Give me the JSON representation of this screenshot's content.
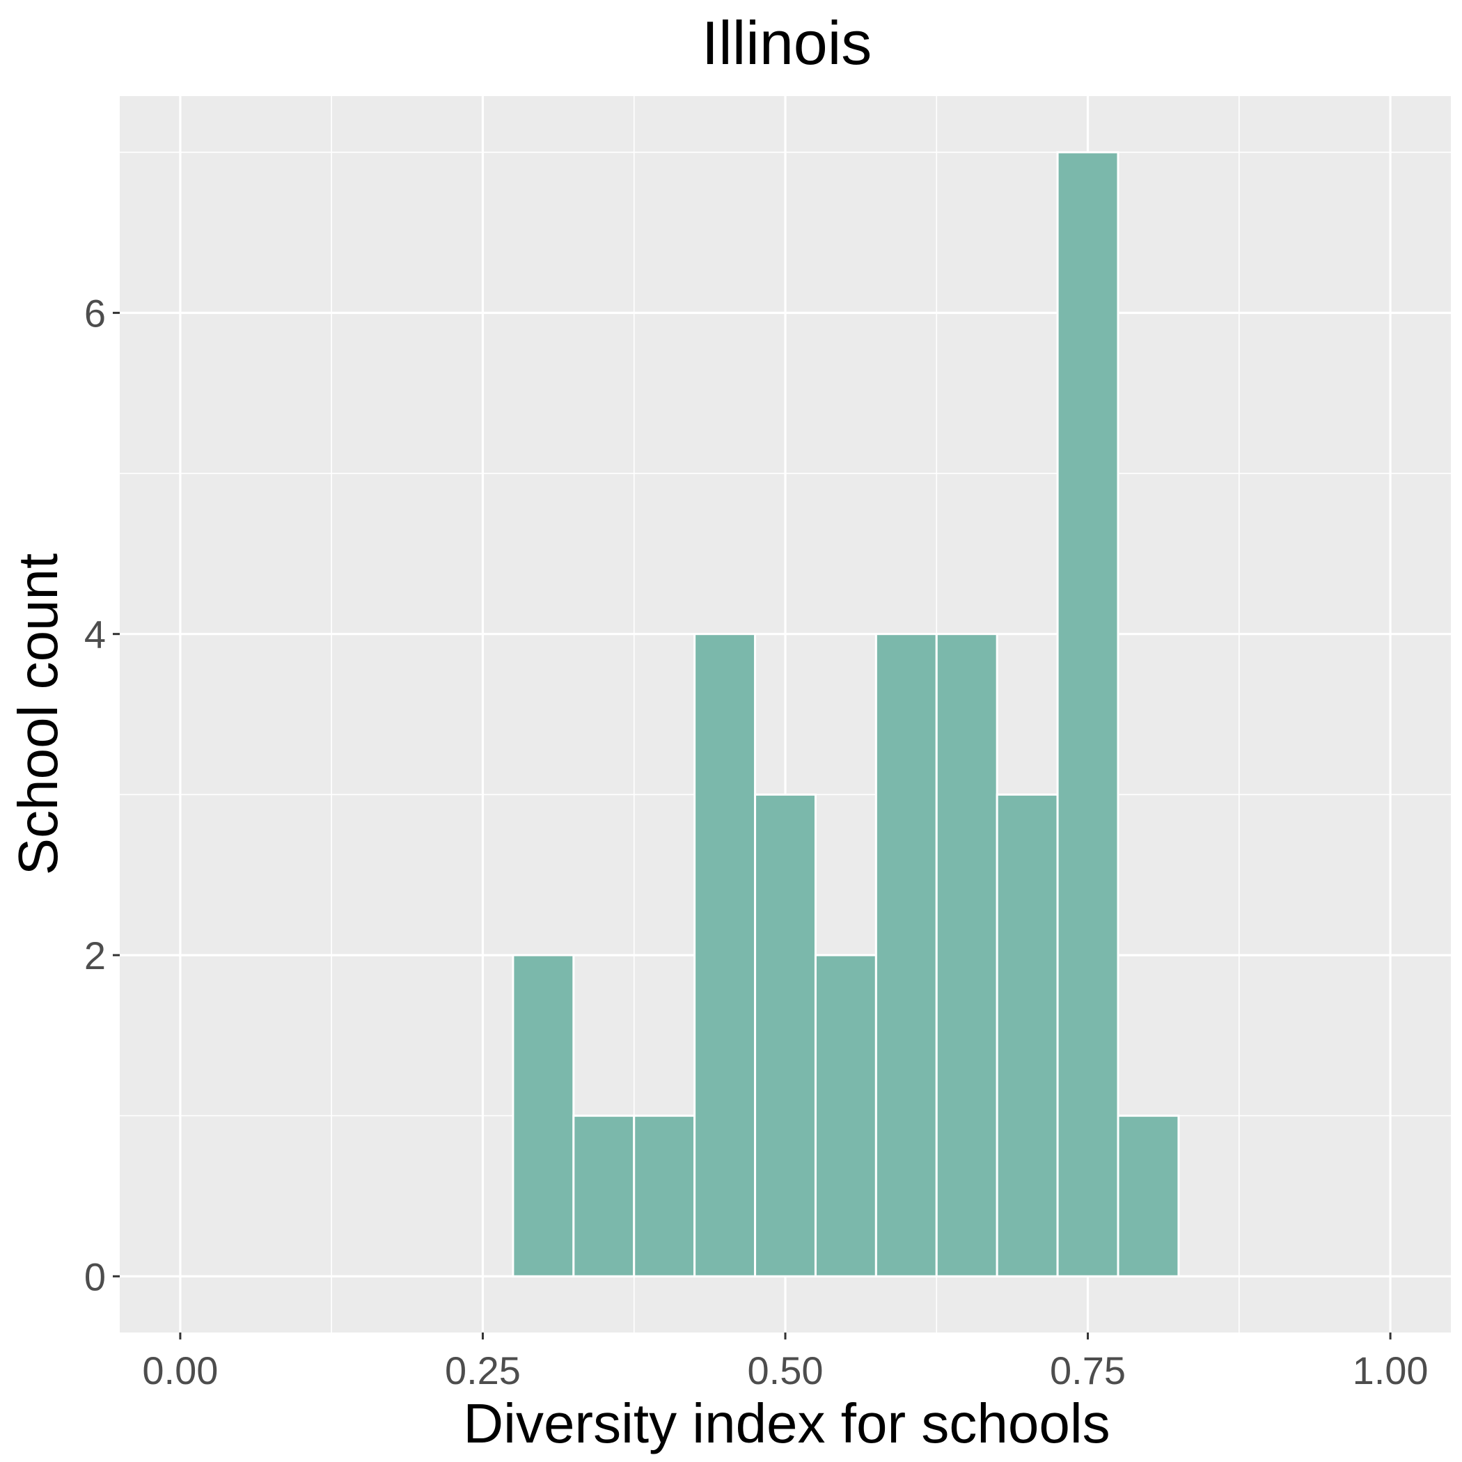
{
  "chart_data": {
    "type": "bar",
    "title": "Illinois",
    "xlabel": "Diversity index for schools",
    "ylabel": "School count",
    "bin_width": 0.05,
    "bins": [
      {
        "x": 0.3,
        "count": 2
      },
      {
        "x": 0.35,
        "count": 1
      },
      {
        "x": 0.4,
        "count": 1
      },
      {
        "x": 0.45,
        "count": 4
      },
      {
        "x": 0.5,
        "count": 3
      },
      {
        "x": 0.55,
        "count": 2
      },
      {
        "x": 0.6,
        "count": 4
      },
      {
        "x": 0.65,
        "count": 4
      },
      {
        "x": 0.7,
        "count": 3
      },
      {
        "x": 0.75,
        "count": 7
      },
      {
        "x": 0.8,
        "count": 1
      }
    ],
    "xlim": [
      -0.05,
      1.05
    ],
    "ylim": [
      -0.35,
      7.35
    ],
    "x_ticks": [
      0.0,
      0.25,
      0.5,
      0.75,
      1.0
    ],
    "x_tick_labels": [
      "0.00",
      "0.25",
      "0.50",
      "0.75",
      "1.00"
    ],
    "y_ticks": [
      0,
      2,
      4,
      6
    ],
    "y_tick_labels": [
      "0",
      "2",
      "4",
      "6"
    ],
    "grid": true,
    "bar_color": "#7bb8ab",
    "panel_color": "#ebebeb",
    "grid_color": "#ffffff"
  }
}
